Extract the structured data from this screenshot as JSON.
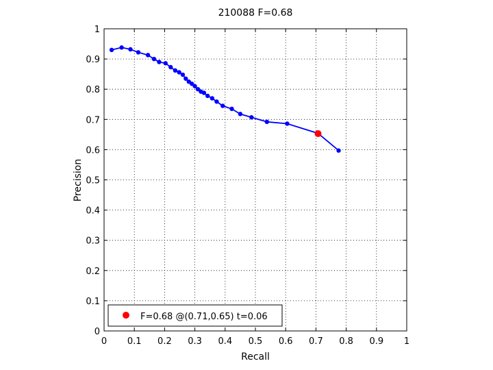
{
  "chart_data": {
    "type": "line",
    "title": "210088 F=0.68",
    "xlabel": "Recall",
    "ylabel": "Precision",
    "xlim": [
      0,
      1
    ],
    "ylim": [
      0,
      1
    ],
    "xticks": [
      0,
      0.1,
      0.2,
      0.3,
      0.4,
      0.5,
      0.6,
      0.7,
      0.8,
      0.9,
      1
    ],
    "yticks": [
      0,
      0.1,
      0.2,
      0.3,
      0.4,
      0.5,
      0.6,
      0.7,
      0.8,
      0.9,
      1
    ],
    "xtick_labels": [
      "0",
      "0.1",
      "0.2",
      "0.3",
      "0.4",
      "0.5",
      "0.6",
      "0.7",
      "0.8",
      "0.9",
      "1"
    ],
    "ytick_labels": [
      "0",
      "0.1",
      "0.2",
      "0.3",
      "0.4",
      "0.5",
      "0.6",
      "0.7",
      "0.8",
      "0.9",
      "1"
    ],
    "grid": true,
    "grid_style": "dotted",
    "legend_position": "bottom-left",
    "series": [
      {
        "color": "#0000ff",
        "marker": "dot",
        "x": [
          0.025,
          0.058,
          0.087,
          0.113,
          0.145,
          0.165,
          0.182,
          0.203,
          0.22,
          0.235,
          0.248,
          0.26,
          0.27,
          0.28,
          0.29,
          0.3,
          0.31,
          0.32,
          0.33,
          0.342,
          0.357,
          0.372,
          0.392,
          0.422,
          0.45,
          0.487,
          0.538,
          0.605,
          0.707,
          0.775
        ],
        "y": [
          0.93,
          0.938,
          0.932,
          0.922,
          0.913,
          0.9,
          0.89,
          0.886,
          0.873,
          0.862,
          0.856,
          0.848,
          0.835,
          0.825,
          0.818,
          0.81,
          0.8,
          0.792,
          0.788,
          0.778,
          0.77,
          0.759,
          0.745,
          0.735,
          0.718,
          0.707,
          0.692,
          0.686,
          0.654,
          0.597
        ]
      }
    ],
    "highlight_point": {
      "x": 0.707,
      "y": 0.653,
      "color": "#ff0000",
      "label": "F=0.68 @(0.71,0.65) t=0.06"
    }
  }
}
